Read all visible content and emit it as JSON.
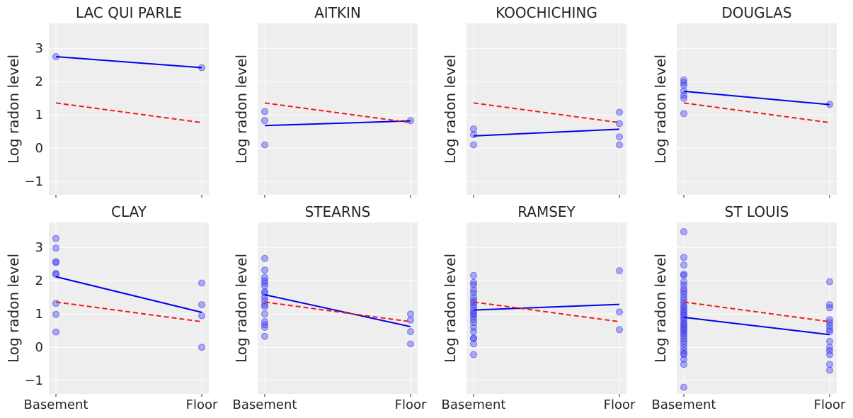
{
  "chart_data": {
    "type": "scatter",
    "layout": {
      "rows": 2,
      "cols": 4,
      "sharex": true,
      "sharey": true
    },
    "ylabel": "Log radon level",
    "x_categories": [
      "Basement",
      "Floor"
    ],
    "ylim": [
      -1.4,
      3.75
    ],
    "yticks": [
      -1,
      0,
      1,
      2,
      3
    ],
    "pooled_line": {
      "basement": 1.36,
      "floor": 0.77,
      "color": "#ee1c1c",
      "style": "dashed"
    },
    "county_line_color": "#0000ee",
    "point_color": "#3d3df0",
    "panels": [
      {
        "title": "LAC QUI PARLE",
        "basement": [
          2.75
        ],
        "floor": [
          2.42
        ],
        "county_line": {
          "basement": 2.75,
          "floor": 2.42
        }
      },
      {
        "title": "AITKIN",
        "basement": [
          1.1,
          0.83,
          0.1
        ],
        "floor": [
          0.83
        ],
        "county_line": {
          "basement": 0.68,
          "floor": 0.82
        }
      },
      {
        "title": "KOOCHICHING",
        "basement": [
          0.58,
          0.41,
          0.1
        ],
        "floor": [
          1.08,
          0.74,
          0.34,
          0.1
        ],
        "county_line": {
          "basement": 0.37,
          "floor": 0.57
        }
      },
      {
        "title": "DOUGLAS",
        "basement": [
          2.05,
          1.97,
          1.89,
          1.72,
          1.59,
          1.5,
          1.04
        ],
        "floor": [
          1.32
        ],
        "county_line": {
          "basement": 1.71,
          "floor": 1.31
        }
      },
      {
        "title": "CLAY",
        "basement": [
          3.27,
          2.98,
          2.57,
          2.55,
          2.22,
          2.19,
          1.32,
          0.99,
          0.46
        ],
        "floor": [
          1.93,
          1.28,
          0.95,
          0.0
        ],
        "county_line": {
          "basement": 2.12,
          "floor": 1.05
        }
      },
      {
        "title": "STEARNS",
        "basement": [
          2.67,
          2.32,
          2.1,
          2.0,
          1.93,
          1.84,
          1.67,
          1.63,
          1.5,
          1.4,
          1.28,
          1.22,
          1.0,
          0.77,
          0.68,
          0.6,
          0.33
        ],
        "floor": [
          1.0,
          0.82,
          0.47,
          0.1
        ],
        "county_line": {
          "basement": 1.58,
          "floor": 0.62
        }
      },
      {
        "title": "RAMSEY",
        "basement": [
          2.16,
          1.95,
          1.87,
          1.72,
          1.63,
          1.5,
          1.41,
          1.35,
          1.28,
          1.2,
          1.1,
          1.03,
          0.99,
          0.92,
          0.83,
          0.74,
          0.6,
          0.47,
          0.28,
          0.26,
          0.1,
          -0.22
        ],
        "floor": [
          2.3,
          1.06,
          0.53
        ],
        "county_line": {
          "basement": 1.12,
          "floor": 1.29
        }
      },
      {
        "title": "ST LOUIS",
        "basement": [
          3.47,
          2.7,
          2.47,
          2.2,
          2.16,
          1.97,
          1.87,
          1.75,
          1.68,
          1.6,
          1.5,
          1.41,
          1.33,
          1.25,
          1.19,
          1.12,
          1.06,
          1.0,
          0.95,
          0.88,
          0.83,
          0.74,
          0.69,
          0.64,
          0.58,
          0.53,
          0.47,
          0.41,
          0.34,
          0.26,
          0.18,
          0.1,
          0.0,
          -0.1,
          -0.18,
          -0.22,
          -0.36,
          -0.51,
          -1.2
        ],
        "floor": [
          1.97,
          1.28,
          1.19,
          0.83,
          0.74,
          0.64,
          0.53,
          0.47,
          0.18,
          0.0,
          -0.1,
          -0.22,
          -0.51,
          -0.69
        ],
        "county_line": {
          "basement": 0.9,
          "floor": 0.38
        }
      }
    ]
  }
}
